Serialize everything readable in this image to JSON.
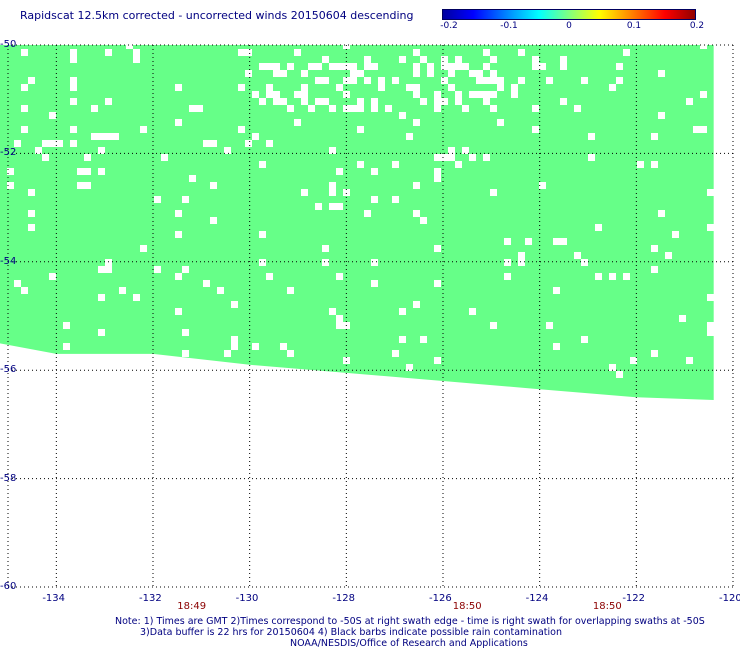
{
  "title": "Rapidscat 12.5km corrected - uncorrected winds 20150604 descending",
  "colorbar": {
    "labels": [
      "-0.2",
      "-0.1",
      "0",
      "0.1",
      "0.2"
    ],
    "values": [
      -0.2,
      -0.1,
      0,
      0.1,
      0.2
    ]
  },
  "map": {
    "lon_range": [
      -135,
      -120
    ],
    "lat_range": [
      -60,
      -50
    ],
    "lat_ticks": [
      "-50",
      "-52",
      "-54",
      "-56",
      "-58",
      "-60"
    ],
    "lat_values": [
      -50,
      -52,
      -54,
      -56,
      -58,
      -60
    ],
    "lon_ticks": [
      "-134",
      "-132",
      "-130",
      "-128",
      "-126",
      "-124",
      "-122",
      "-120"
    ],
    "lon_values": [
      -134,
      -132,
      -130,
      -128,
      -126,
      -124,
      -122,
      -120
    ],
    "swath_color": "#66ff88",
    "swath_value": 0,
    "swath_south_edge_lat": [
      [
        -135.2,
        -55.5
      ],
      [
        -134.0,
        -55.7
      ],
      [
        -132.0,
        -55.7
      ],
      [
        -130.0,
        -55.9
      ],
      [
        -128.0,
        -56.05
      ],
      [
        -126.0,
        -56.2
      ],
      [
        -124.0,
        -56.35
      ],
      [
        -122.0,
        -56.5
      ],
      [
        -120.4,
        -56.55
      ]
    ],
    "time_labels": [
      {
        "text": "18:49",
        "lon": -131.2
      },
      {
        "text": "18:50",
        "lon": -125.5
      },
      {
        "text": "18:50",
        "lon": -122.6
      }
    ]
  },
  "notes": {
    "line1": "Note: 1) Times are GMT 2)Times correspond to -50S at right swath edge - time is right swath for overlapping swaths at -50S",
    "line2": "3)Data buffer is 22 hrs for 20150604 4) Black barbs indicate possible rain contamination",
    "line3": "NOAA/NESDIS/Office of Research and Applications"
  },
  "colors": {
    "text": "#000080",
    "time_text": "#8b0000",
    "gridline": "#000000"
  }
}
